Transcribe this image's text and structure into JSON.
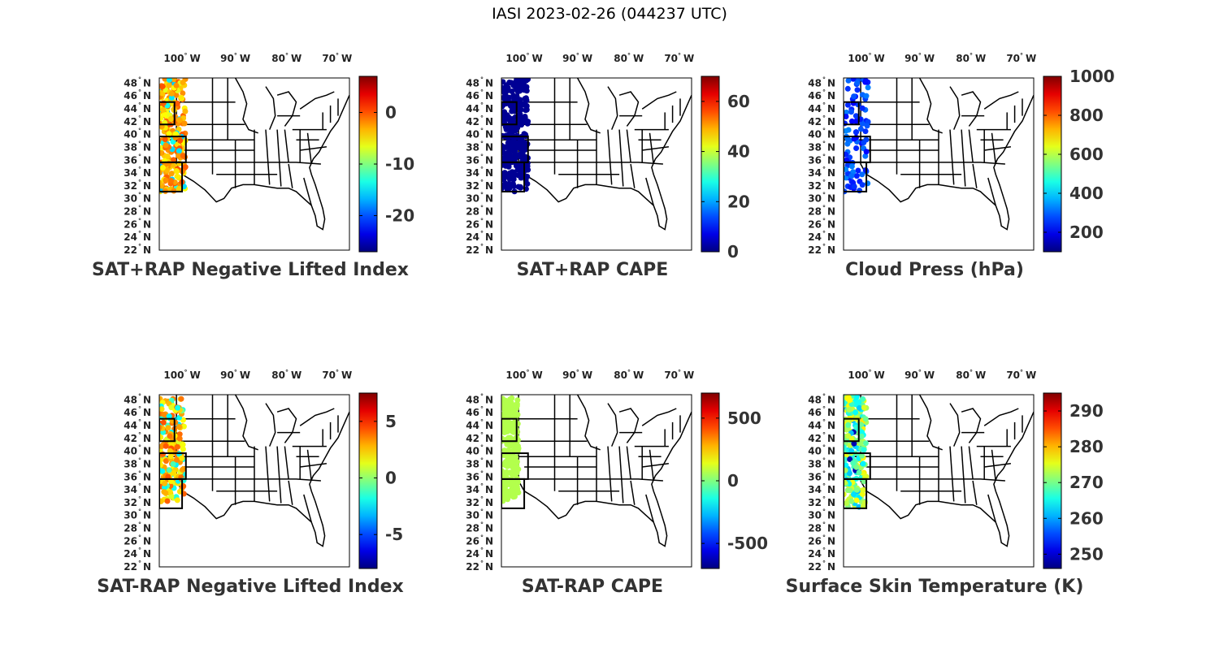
{
  "title": "IASI 2023-02-26 (044237 UTC)",
  "lon_ticks": [
    "100",
    "90",
    "80",
    "70"
  ],
  "lon_suffix": "W",
  "lat_ticks": [
    "48",
    "46",
    "44",
    "42",
    "40",
    "38",
    "36",
    "34",
    "32",
    "30",
    "28",
    "26",
    "24",
    "22"
  ],
  "lat_suffix": "N",
  "degree_symbol": "°",
  "colormap": "jet",
  "map_colors": {
    "land_border": "#000000",
    "background": "#ffffff"
  },
  "panels": [
    {
      "title": "SAT+RAP Negative Lifted Index",
      "colorbar": {
        "min": -27,
        "max": 7,
        "ticks": [
          "0",
          "-10",
          "-20"
        ],
        "tick_values": [
          0,
          -10,
          -20
        ]
      },
      "data_summary": "points along western swath, values mostly -8 to 2 (yellow/orange), a few blue near north"
    },
    {
      "title": "SAT+RAP CAPE",
      "colorbar": {
        "min": 0,
        "max": 70,
        "ticks": [
          "60",
          "40",
          "20",
          "0"
        ],
        "tick_values": [
          60,
          40,
          20,
          0
        ]
      },
      "data_summary": "points along western swath, values near 0 (dark blue)"
    },
    {
      "title": "Cloud Press (hPa)",
      "colorbar": {
        "min": 100,
        "max": 1000,
        "ticks": [
          "1000",
          "800",
          "600",
          "400",
          "200"
        ],
        "tick_values": [
          1000,
          800,
          600,
          400,
          200
        ]
      },
      "data_summary": "scattered cloud points, values ~200-300 hPa (blue)"
    },
    {
      "title": "SAT-RAP Negative Lifted Index",
      "colorbar": {
        "min": -8,
        "max": 7.5,
        "ticks": [
          "5",
          "0",
          "-5"
        ],
        "tick_values": [
          5,
          0,
          -5
        ]
      },
      "data_summary": "points along western swath, values about 0 to 4 (yellow/orange), some cyan"
    },
    {
      "title": "SAT-RAP CAPE",
      "colorbar": {
        "min": -700,
        "max": 700,
        "ticks": [
          "500",
          "0",
          "-500"
        ],
        "tick_values": [
          500,
          0,
          -500
        ]
      },
      "data_summary": "points along western swath, values near 0 (light green)"
    },
    {
      "title": "Surface Skin Temperature (K)",
      "colorbar": {
        "min": 246,
        "max": 295,
        "ticks": [
          "290",
          "280",
          "270",
          "260",
          "250"
        ],
        "tick_values": [
          290,
          280,
          270,
          260,
          250
        ]
      },
      "data_summary": "points along western swath, values ~258-275 K (cyan/yellow), one cold point ~250 K"
    }
  ]
}
